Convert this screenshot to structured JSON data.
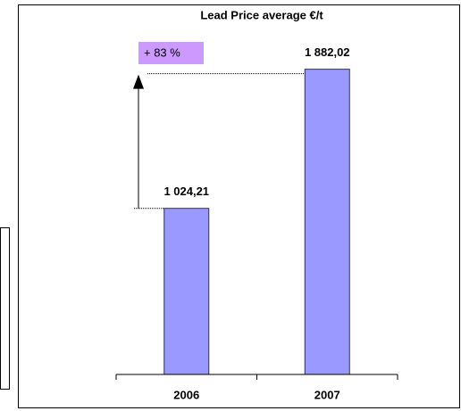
{
  "chart_data": {
    "type": "bar",
    "title": "Lead Price average €/t",
    "categories": [
      "2006",
      "2007"
    ],
    "values": [
      1024.21,
      1882.02
    ],
    "value_labels": [
      "1 024,21",
      "1 882,02"
    ],
    "color": "#9999ff",
    "annotation": "+ 83 %",
    "annotation_color": "#cc99ff",
    "ylim": [
      0,
      2100
    ]
  }
}
